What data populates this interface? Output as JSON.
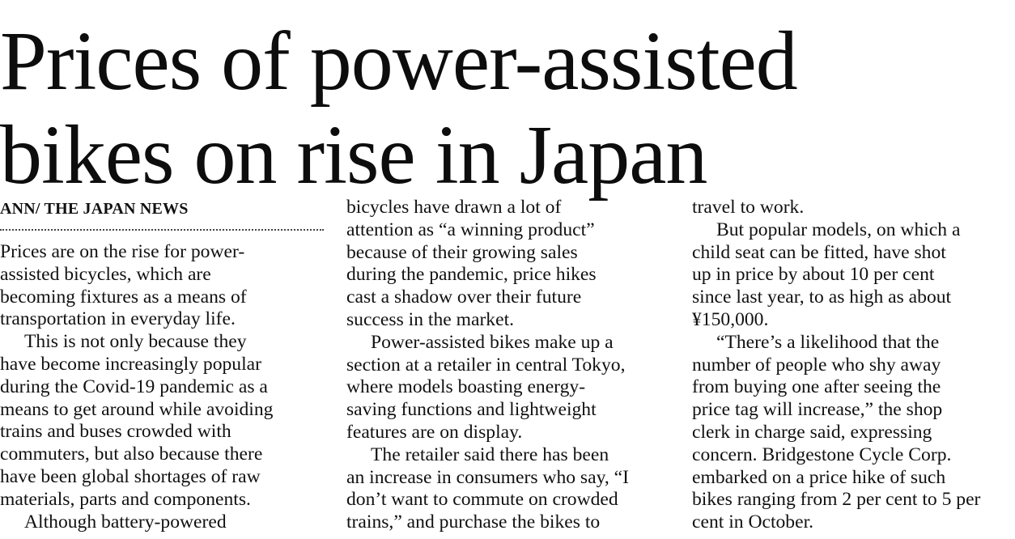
{
  "article": {
    "headline": [
      "Prices of power-assisted",
      "bikes on rise in Japan"
    ],
    "byline": "ANN/ THE JAPAN NEWS",
    "columns": [
      {
        "lines": [
          {
            "text": "Prices are on the rise for power-",
            "indent": false
          },
          {
            "text": "assisted bicycles, which are",
            "indent": false
          },
          {
            "text": "becoming fixtures as a means of",
            "indent": false
          },
          {
            "text": "transportation in everyday life.",
            "indent": false
          },
          {
            "text": "This is not only because they",
            "indent": true
          },
          {
            "text": "have become increasingly popular",
            "indent": false
          },
          {
            "text": "during the Covid-19 pandemic as a",
            "indent": false
          },
          {
            "text": "means to get around while avoiding",
            "indent": false
          },
          {
            "text": "trains and buses crowded with",
            "indent": false
          },
          {
            "text": "commuters, but also because there",
            "indent": false
          },
          {
            "text": "have been global shortages of raw",
            "indent": false
          },
          {
            "text": "materials, parts and components.",
            "indent": false
          },
          {
            "text": "Although battery-powered",
            "indent": true
          }
        ]
      },
      {
        "lines": [
          {
            "text": "bicycles have drawn a lot of",
            "indent": false
          },
          {
            "text": "attention as “a winning product”",
            "indent": false
          },
          {
            "text": "because of their growing sales",
            "indent": false
          },
          {
            "text": "during the pandemic, price hikes",
            "indent": false
          },
          {
            "text": "cast a shadow over their future",
            "indent": false
          },
          {
            "text": "success in the market.",
            "indent": false
          },
          {
            "text": "Power-assisted bikes make up a",
            "indent": true
          },
          {
            "text": "section at a retailer in central Tokyo,",
            "indent": false
          },
          {
            "text": "where models boasting energy-",
            "indent": false
          },
          {
            "text": "saving functions and lightweight",
            "indent": false
          },
          {
            "text": "features are on display.",
            "indent": false
          },
          {
            "text": "The retailer said there has been",
            "indent": true
          },
          {
            "text": "an increase in consumers who say, “I",
            "indent": false
          },
          {
            "text": "don’t want to commute on crowded",
            "indent": false
          },
          {
            "text": "trains,” and purchase the bikes to",
            "indent": false
          }
        ]
      },
      {
        "lines": [
          {
            "text": "travel to work.",
            "indent": false
          },
          {
            "text": "But popular models, on which a",
            "indent": true
          },
          {
            "text": "child seat can be fitted, have shot",
            "indent": false
          },
          {
            "text": "up in price by about 10 per cent",
            "indent": false
          },
          {
            "text": "since last year, to as high as about",
            "indent": false
          },
          {
            "text": "¥150,000.",
            "indent": false
          },
          {
            "text": "“There’s a likelihood that the",
            "indent": true
          },
          {
            "text": "number of people who shy away",
            "indent": false
          },
          {
            "text": "from buying one after seeing the",
            "indent": false
          },
          {
            "text": "price tag will increase,” the shop",
            "indent": false
          },
          {
            "text": "clerk in charge said, expressing",
            "indent": false
          },
          {
            "text": "concern. Bridgestone Cycle Corp.",
            "indent": false
          },
          {
            "text": "embarked on a price hike of such",
            "indent": false
          },
          {
            "text": "bikes ranging from 2 per cent to 5 per",
            "indent": false
          },
          {
            "text": "cent in October.",
            "indent": false
          }
        ]
      }
    ]
  }
}
